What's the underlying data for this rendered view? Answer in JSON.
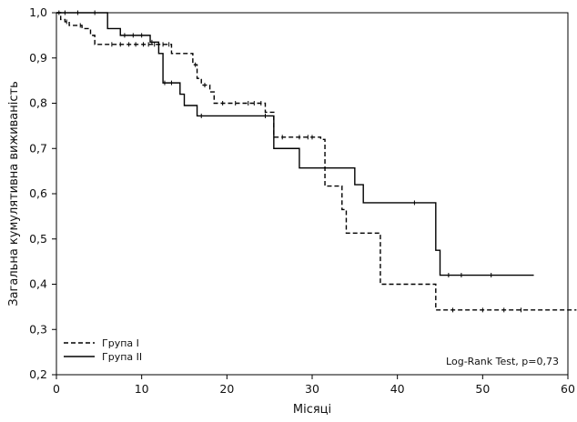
{
  "chart_data": {
    "type": "line",
    "title": "",
    "xlabel": "Місяці",
    "ylabel": "Загальна кумулятивна виживаність",
    "xlim": [
      0,
      60
    ],
    "ylim": [
      0.2,
      1.0
    ],
    "x_ticks": [
      0,
      10,
      20,
      30,
      40,
      50,
      60
    ],
    "y_ticks": [
      0.2,
      0.3,
      0.4,
      0.5,
      0.6,
      0.7,
      0.8,
      0.9,
      1.0
    ],
    "x_tick_labels": [
      "0",
      "10",
      "20",
      "30",
      "40",
      "50",
      "60"
    ],
    "y_tick_labels": [
      "0,2",
      "0,3",
      "0,4",
      "0,5",
      "0,6",
      "0,7",
      "0,8",
      "0,9",
      "1,0"
    ],
    "grid": false,
    "legend_position": "bottom-left",
    "annotation": "Log-Rank Test, p=0,73",
    "series": [
      {
        "name": "Група I",
        "line_style": "dashed",
        "color": "#000000",
        "steps": [
          [
            0,
            1.0
          ],
          [
            0.5,
            0.985
          ],
          [
            1.0,
            0.98
          ],
          [
            1.5,
            0.972
          ],
          [
            3.0,
            0.965
          ],
          [
            4.0,
            0.95
          ],
          [
            4.5,
            0.93
          ],
          [
            12.0,
            0.93
          ],
          [
            13.5,
            0.91
          ],
          [
            16.0,
            0.885
          ],
          [
            16.5,
            0.855
          ],
          [
            17.0,
            0.84
          ],
          [
            18.0,
            0.825
          ],
          [
            18.5,
            0.8
          ],
          [
            24.5,
            0.78
          ],
          [
            25.5,
            0.725
          ],
          [
            27.5,
            0.725
          ],
          [
            31.0,
            0.72
          ],
          [
            31.5,
            0.617
          ],
          [
            33.5,
            0.565
          ],
          [
            34.0,
            0.513
          ],
          [
            38.0,
            0.4
          ],
          [
            44.5,
            0.343
          ],
          [
            61.0,
            0.343
          ]
        ],
        "censored_x": [
          0.3,
          1.2,
          2.8,
          6.5,
          7.5,
          8.5,
          9.3,
          10.2,
          10.8,
          11.5,
          12.5,
          13.2,
          16.3,
          17.4,
          19.5,
          21.0,
          22.5,
          23.2,
          24.0,
          26.5,
          28.5,
          29.5,
          30.0,
          46.5,
          50.0,
          52.5,
          54.5
        ]
      },
      {
        "name": "Група II",
        "line_style": "solid",
        "color": "#000000",
        "steps": [
          [
            0,
            1.0
          ],
          [
            6.0,
            0.965
          ],
          [
            7.5,
            0.95
          ],
          [
            11.0,
            0.935
          ],
          [
            12.0,
            0.91
          ],
          [
            12.5,
            0.845
          ],
          [
            14.5,
            0.82
          ],
          [
            15.0,
            0.795
          ],
          [
            16.5,
            0.772
          ],
          [
            25.5,
            0.7
          ],
          [
            28.5,
            0.657
          ],
          [
            35.0,
            0.62
          ],
          [
            36.0,
            0.58
          ],
          [
            44.5,
            0.475
          ],
          [
            45.0,
            0.42
          ],
          [
            56.0,
            0.42
          ]
        ],
        "censored_x": [
          1.0,
          2.5,
          4.5,
          8.0,
          9.0,
          10.0,
          11.2,
          12.7,
          13.5,
          17.0,
          24.5,
          42.0,
          46.0,
          47.5,
          51.0
        ]
      }
    ]
  }
}
